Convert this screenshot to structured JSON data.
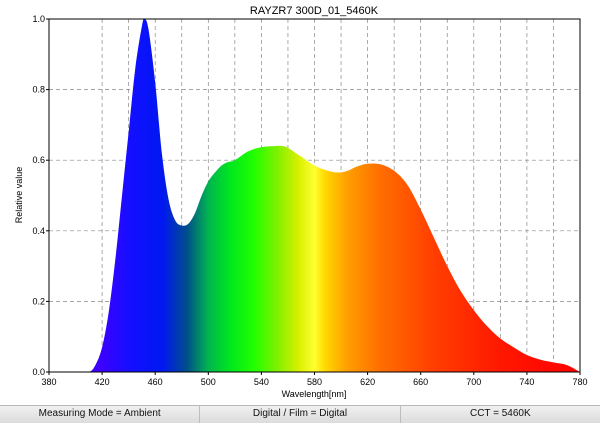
{
  "chart_data": {
    "type": "area",
    "title": "RAYZR7 300D_01_5460K",
    "xlabel": "Wavelength[nm]",
    "ylabel": "Relative value",
    "xlim": [
      380,
      780
    ],
    "ylim": [
      0,
      1.0
    ],
    "x_ticks": [
      380,
      420,
      460,
      500,
      540,
      580,
      620,
      660,
      700,
      740,
      780
    ],
    "y_ticks": [
      0.0,
      0.2,
      0.4,
      0.6,
      0.8,
      1.0
    ],
    "y_tick_labels": [
      "0.0",
      "0.2",
      "0.4",
      "0.6",
      "0.8",
      "1.0"
    ],
    "grid": true,
    "fill": "spectral-gradient",
    "points": [
      [
        380,
        0.0
      ],
      [
        400,
        0.0
      ],
      [
        410,
        0.0
      ],
      [
        415,
        0.02
      ],
      [
        420,
        0.07
      ],
      [
        425,
        0.17
      ],
      [
        430,
        0.32
      ],
      [
        435,
        0.5
      ],
      [
        440,
        0.68
      ],
      [
        445,
        0.86
      ],
      [
        450,
        0.98
      ],
      [
        452,
        1.0
      ],
      [
        455,
        0.97
      ],
      [
        460,
        0.82
      ],
      [
        465,
        0.62
      ],
      [
        470,
        0.49
      ],
      [
        475,
        0.43
      ],
      [
        480,
        0.415
      ],
      [
        485,
        0.42
      ],
      [
        490,
        0.45
      ],
      [
        495,
        0.5
      ],
      [
        500,
        0.54
      ],
      [
        505,
        0.565
      ],
      [
        510,
        0.585
      ],
      [
        515,
        0.595
      ],
      [
        520,
        0.6
      ],
      [
        530,
        0.625
      ],
      [
        540,
        0.637
      ],
      [
        550,
        0.64
      ],
      [
        556,
        0.64
      ],
      [
        560,
        0.635
      ],
      [
        570,
        0.61
      ],
      [
        580,
        0.585
      ],
      [
        590,
        0.57
      ],
      [
        598,
        0.565
      ],
      [
        605,
        0.57
      ],
      [
        612,
        0.582
      ],
      [
        620,
        0.59
      ],
      [
        630,
        0.588
      ],
      [
        640,
        0.57
      ],
      [
        650,
        0.53
      ],
      [
        660,
        0.46
      ],
      [
        670,
        0.38
      ],
      [
        680,
        0.3
      ],
      [
        690,
        0.23
      ],
      [
        700,
        0.175
      ],
      [
        710,
        0.13
      ],
      [
        720,
        0.095
      ],
      [
        730,
        0.07
      ],
      [
        740,
        0.048
      ],
      [
        750,
        0.035
      ],
      [
        760,
        0.027
      ],
      [
        770,
        0.02
      ],
      [
        780,
        0.0
      ]
    ]
  },
  "status_bar": {
    "measuring_mode": "Measuring Mode = Ambient",
    "digital_film": "Digital / Film = Digital",
    "cct": "CCT = 5460K"
  }
}
